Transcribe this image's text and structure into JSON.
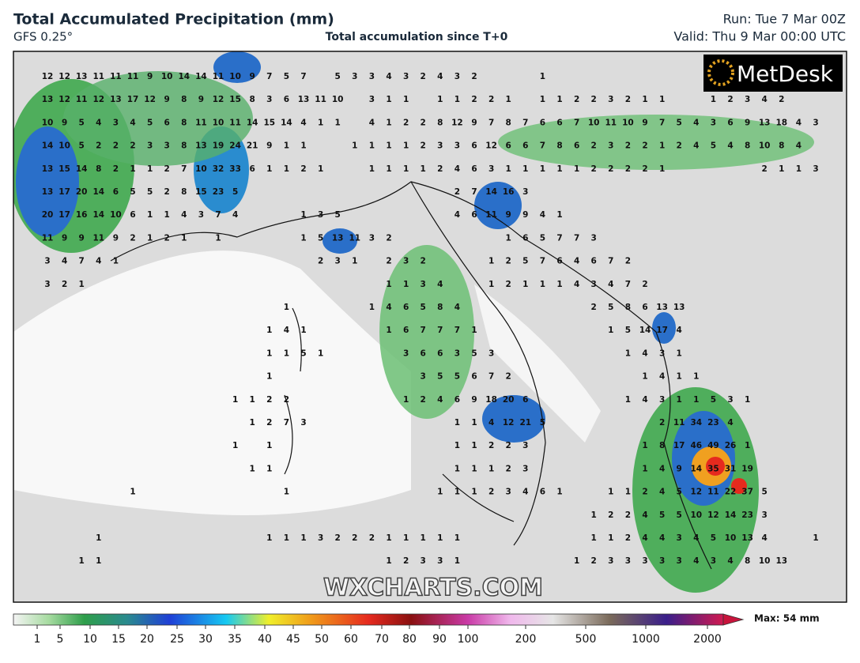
{
  "header": {
    "title": "Total Accumulated Precipitation (mm)",
    "model": "GFS 0.25°",
    "subtitle": "Total accumulation since T+0",
    "run": "Run: Tue 7 Mar 00Z",
    "valid": "Valid: Thu 9 Mar 00:00 UTC"
  },
  "logo": "MetDesk",
  "watermark": "WXCHARTS.COM",
  "map": {
    "rows": [
      [
        12,
        12,
        13,
        11,
        11,
        11,
        9,
        10,
        14,
        14,
        11,
        10,
        9,
        7,
        5,
        7,
        null,
        5,
        3,
        3,
        4,
        3,
        2,
        4,
        3,
        2,
        null,
        null,
        null,
        1
      ],
      [
        13,
        12,
        11,
        12,
        13,
        17,
        12,
        9,
        8,
        9,
        12,
        15,
        8,
        3,
        6,
        13,
        11,
        10,
        null,
        3,
        1,
        1,
        null,
        1,
        1,
        2,
        2,
        1,
        null,
        1,
        1,
        2,
        2,
        3,
        2,
        1,
        1,
        null,
        null,
        1,
        2,
        3,
        4,
        2
      ],
      [
        10,
        9,
        5,
        4,
        3,
        4,
        5,
        6,
        8,
        11,
        10,
        11,
        14,
        15,
        14,
        4,
        1,
        1,
        null,
        4,
        1,
        2,
        2,
        8,
        12,
        9,
        7,
        8,
        7,
        6,
        6,
        7,
        10,
        11,
        10,
        9,
        7,
        5,
        4,
        3,
        6,
        9,
        13,
        18,
        4,
        3
      ],
      [
        14,
        10,
        5,
        2,
        2,
        2,
        3,
        3,
        8,
        13,
        19,
        24,
        21,
        9,
        1,
        1,
        null,
        null,
        1,
        1,
        1,
        1,
        2,
        3,
        3,
        6,
        12,
        6,
        6,
        7,
        8,
        6,
        2,
        3,
        2,
        2,
        1,
        2,
        4,
        5,
        4,
        8,
        10,
        8,
        4
      ],
      [
        13,
        15,
        14,
        8,
        2,
        1,
        1,
        2,
        7,
        10,
        32,
        33,
        6,
        1,
        1,
        2,
        1,
        null,
        null,
        1,
        1,
        1,
        1,
        2,
        4,
        6,
        3,
        1,
        1,
        1,
        1,
        1,
        2,
        2,
        2,
        2,
        1,
        null,
        null,
        null,
        null,
        null,
        2,
        1,
        1,
        3
      ],
      [
        13,
        17,
        20,
        14,
        6,
        5,
        5,
        2,
        8,
        15,
        23,
        5,
        null,
        null,
        null,
        null,
        null,
        null,
        null,
        null,
        null,
        null,
        null,
        null,
        2,
        7,
        14,
        16,
        3
      ],
      [
        20,
        17,
        16,
        14,
        10,
        6,
        1,
        1,
        4,
        3,
        7,
        4,
        null,
        null,
        null,
        1,
        3,
        5,
        null,
        null,
        null,
        null,
        null,
        null,
        4,
        6,
        11,
        9,
        9,
        4,
        1
      ],
      [
        11,
        9,
        9,
        11,
        9,
        2,
        1,
        2,
        1,
        null,
        1,
        null,
        null,
        null,
        null,
        1,
        5,
        13,
        11,
        3,
        2,
        null,
        null,
        null,
        null,
        null,
        null,
        1,
        6,
        5,
        7,
        7,
        3
      ],
      [
        3,
        4,
        7,
        4,
        1,
        null,
        null,
        null,
        null,
        null,
        null,
        null,
        null,
        null,
        null,
        null,
        2,
        3,
        1,
        null,
        2,
        3,
        2,
        null,
        null,
        null,
        1,
        2,
        5,
        7,
        6,
        4,
        6,
        7,
        2
      ],
      [
        3,
        2,
        1,
        null,
        null,
        null,
        null,
        null,
        null,
        null,
        null,
        null,
        null,
        null,
        null,
        null,
        null,
        null,
        null,
        null,
        1,
        1,
        3,
        4,
        null,
        null,
        1,
        2,
        1,
        1,
        1,
        4,
        3,
        4,
        7,
        2
      ],
      [
        null,
        null,
        null,
        null,
        null,
        null,
        null,
        null,
        null,
        null,
        null,
        null,
        null,
        null,
        1,
        null,
        null,
        null,
        null,
        1,
        4,
        6,
        5,
        8,
        4,
        null,
        null,
        null,
        null,
        null,
        null,
        null,
        2,
        5,
        8,
        6,
        13,
        13
      ],
      [
        null,
        null,
        null,
        null,
        null,
        null,
        null,
        null,
        null,
        null,
        null,
        null,
        null,
        1,
        4,
        1,
        null,
        null,
        null,
        null,
        1,
        6,
        7,
        7,
        7,
        1,
        null,
        null,
        null,
        null,
        null,
        null,
        null,
        1,
        5,
        14,
        17,
        4
      ],
      [
        null,
        null,
        null,
        null,
        null,
        null,
        null,
        null,
        null,
        null,
        null,
        null,
        null,
        1,
        1,
        5,
        1,
        null,
        null,
        null,
        null,
        3,
        6,
        6,
        3,
        5,
        3,
        null,
        null,
        null,
        null,
        null,
        null,
        null,
        1,
        4,
        3,
        1
      ],
      [
        null,
        null,
        null,
        null,
        null,
        null,
        null,
        null,
        null,
        null,
        null,
        null,
        null,
        1,
        null,
        null,
        null,
        null,
        null,
        null,
        null,
        null,
        3,
        5,
        5,
        6,
        7,
        2,
        null,
        null,
        null,
        null,
        null,
        null,
        null,
        1,
        4,
        1,
        1
      ],
      [
        null,
        null,
        null,
        null,
        null,
        null,
        null,
        null,
        null,
        null,
        null,
        1,
        1,
        2,
        2,
        null,
        null,
        null,
        null,
        null,
        null,
        1,
        2,
        4,
        6,
        9,
        18,
        20,
        6,
        null,
        null,
        null,
        null,
        null,
        1,
        4,
        3,
        1,
        1,
        5,
        3,
        1
      ],
      [
        null,
        null,
        null,
        null,
        null,
        null,
        null,
        null,
        null,
        null,
        null,
        null,
        1,
        2,
        7,
        3,
        null,
        null,
        null,
        null,
        null,
        null,
        null,
        null,
        1,
        1,
        4,
        12,
        21,
        5,
        null,
        null,
        null,
        null,
        null,
        null,
        2,
        11,
        34,
        23,
        4
      ],
      [
        null,
        null,
        null,
        null,
        null,
        null,
        null,
        null,
        null,
        null,
        null,
        1,
        null,
        1,
        null,
        null,
        null,
        null,
        null,
        null,
        null,
        null,
        null,
        null,
        1,
        1,
        2,
        2,
        3,
        null,
        null,
        null,
        null,
        null,
        null,
        1,
        8,
        17,
        46,
        49,
        26,
        1
      ],
      [
        null,
        null,
        null,
        null,
        null,
        null,
        null,
        null,
        null,
        null,
        null,
        null,
        1,
        1,
        null,
        null,
        null,
        null,
        null,
        null,
        null,
        null,
        null,
        null,
        1,
        1,
        1,
        2,
        3,
        null,
        null,
        null,
        null,
        null,
        null,
        1,
        4,
        9,
        14,
        35,
        31,
        19
      ],
      [
        null,
        null,
        null,
        null,
        null,
        1,
        null,
        null,
        null,
        null,
        null,
        null,
        null,
        null,
        1,
        null,
        null,
        null,
        null,
        null,
        null,
        null,
        null,
        1,
        1,
        1,
        2,
        3,
        4,
        6,
        1,
        null,
        null,
        1,
        1,
        2,
        4,
        5,
        12,
        11,
        22,
        37,
        5
      ],
      [
        null,
        null,
        null,
        null,
        null,
        null,
        null,
        null,
        null,
        null,
        null,
        null,
        null,
        null,
        null,
        null,
        null,
        null,
        null,
        null,
        null,
        null,
        null,
        null,
        null,
        null,
        null,
        null,
        null,
        null,
        null,
        null,
        1,
        2,
        2,
        4,
        5,
        5,
        10,
        12,
        14,
        23,
        3
      ],
      [
        null,
        null,
        null,
        1,
        null,
        null,
        null,
        null,
        null,
        null,
        null,
        null,
        null,
        1,
        1,
        1,
        3,
        2,
        2,
        2,
        1,
        1,
        1,
        1,
        1,
        null,
        null,
        null,
        null,
        null,
        null,
        null,
        1,
        1,
        2,
        4,
        4,
        3,
        4,
        5,
        10,
        13,
        4,
        null,
        null,
        1
      ],
      [
        null,
        null,
        1,
        1,
        null,
        null,
        null,
        null,
        null,
        null,
        null,
        null,
        null,
        null,
        null,
        null,
        null,
        null,
        null,
        null,
        1,
        2,
        3,
        3,
        1,
        null,
        null,
        null,
        null,
        null,
        null,
        1,
        2,
        3,
        3,
        3,
        3,
        3,
        4,
        3,
        4,
        8,
        10,
        13
      ]
    ]
  },
  "colorbar": {
    "ticks": [
      1,
      5,
      10,
      15,
      20,
      25,
      30,
      35,
      40,
      45,
      50,
      60,
      70,
      80,
      90,
      100,
      200,
      500,
      1000,
      2000
    ],
    "max": "Max: 54 mm"
  }
}
